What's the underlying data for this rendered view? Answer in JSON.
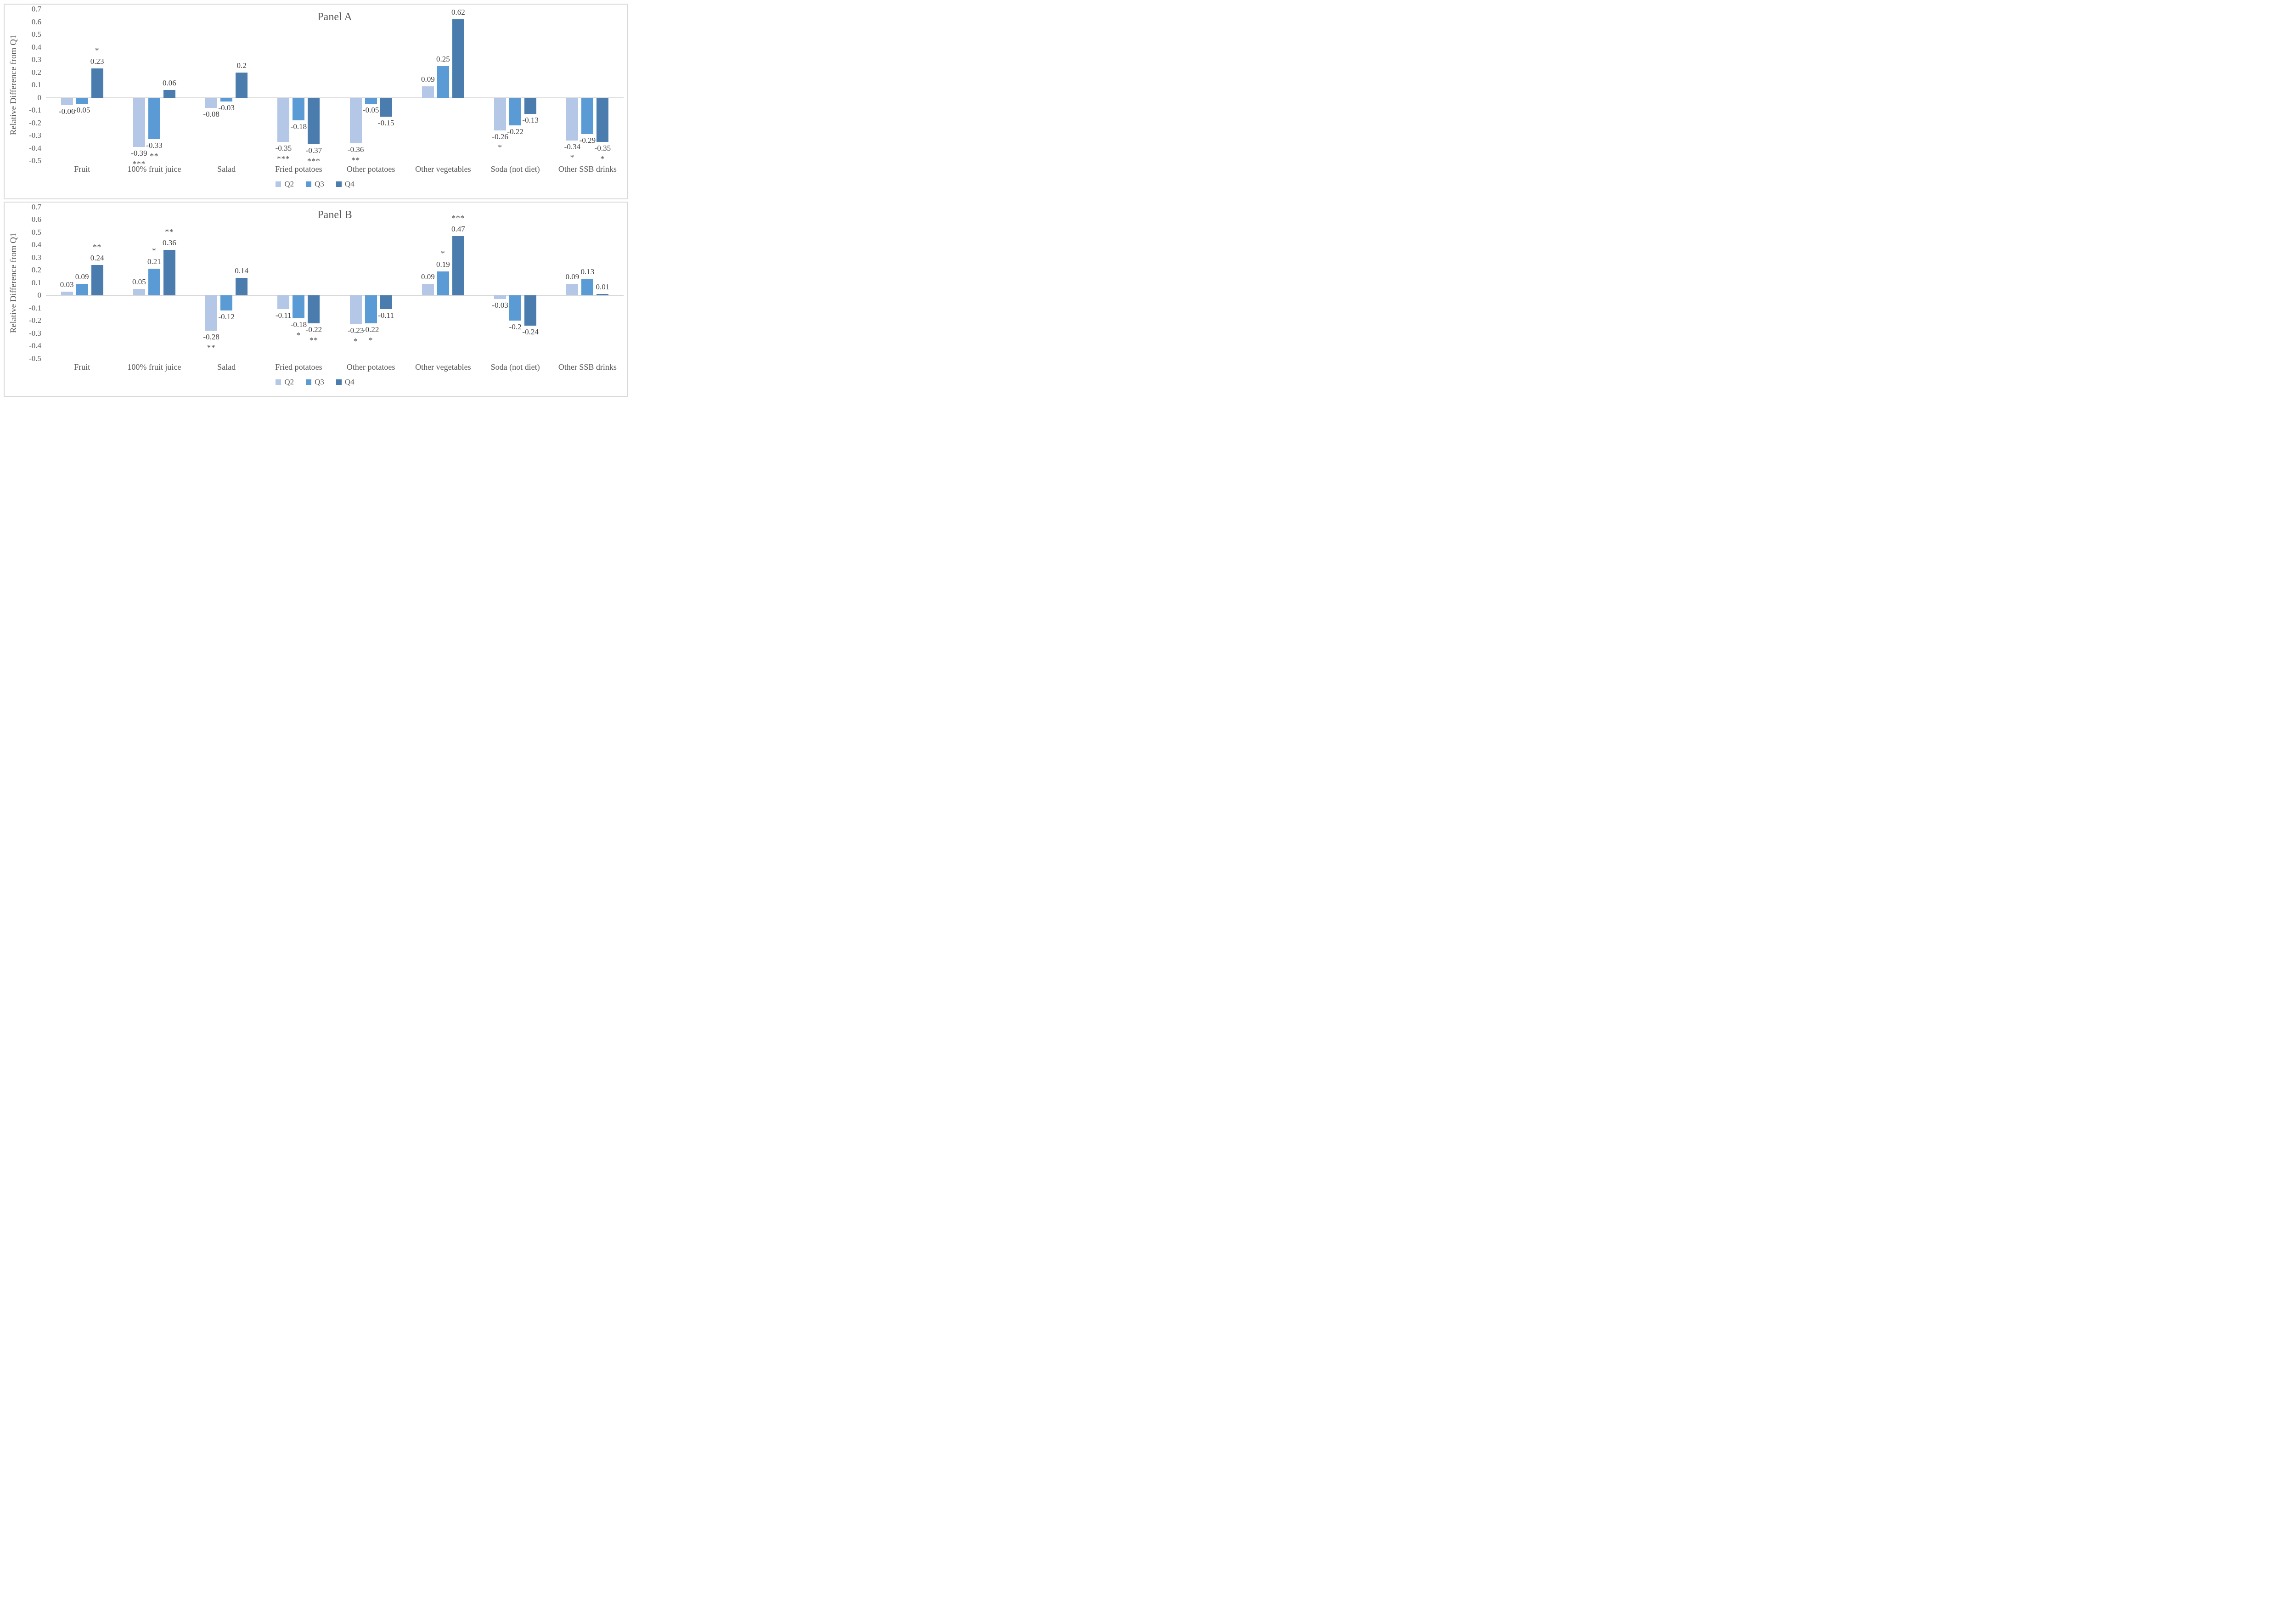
{
  "colors": {
    "q2": "#b4c7e7",
    "q3": "#5b9bd5",
    "q4": "#4a7cae",
    "axis_line": "#d9d9d9",
    "panel_border": "#d9d9d9",
    "muted_text": "#595959",
    "label_text": "#404040"
  },
  "chart_data": [
    {
      "type": "bar",
      "title": "Panel A",
      "ylabel": "Relative Difference from Q1",
      "ylim": [
        -0.5,
        0.7
      ],
      "grid": false,
      "legend_position": "bottom",
      "yticks": [
        "0.7",
        "0.6",
        "0.5",
        "0.4",
        "0.3",
        "0.2",
        "0.1",
        "0",
        "-0.1",
        "-0.2",
        "-0.3",
        "-0.4",
        "-0.5"
      ],
      "categories": [
        "Fruit",
        "100% fruit juice",
        "Salad",
        "Fried potatoes",
        "Other potatoes",
        "Other vegetables",
        "Soda (not diet)",
        "Other SSB drinks"
      ],
      "series": [
        {
          "name": "Q2",
          "color": "#b4c7e7",
          "values": [
            -0.06,
            -0.39,
            -0.08,
            -0.35,
            -0.36,
            0.09,
            -0.26,
            -0.34
          ],
          "sig": [
            "",
            "***",
            "",
            "***",
            "**",
            "",
            "*",
            "*"
          ]
        },
        {
          "name": "Q3",
          "color": "#5b9bd5",
          "values": [
            -0.05,
            -0.33,
            -0.03,
            -0.18,
            -0.05,
            0.25,
            -0.22,
            -0.29
          ],
          "sig": [
            "",
            "**",
            "",
            "",
            "",
            "",
            "",
            ""
          ]
        },
        {
          "name": "Q4",
          "color": "#4a7cae",
          "values": [
            0.23,
            0.06,
            0.2,
            -0.37,
            -0.15,
            0.62,
            -0.13,
            -0.35
          ],
          "sig": [
            "*",
            "",
            "",
            "***",
            "",
            "***",
            "",
            "*"
          ]
        }
      ]
    },
    {
      "type": "bar",
      "title": "Panel B",
      "ylabel": "Relative Difference from Q1",
      "ylim": [
        -0.5,
        0.7
      ],
      "grid": false,
      "legend_position": "bottom",
      "yticks": [
        "0.7",
        "0.6",
        "0.5",
        "0.4",
        "0.3",
        "0.2",
        "0.1",
        "0",
        "-0.1",
        "-0.2",
        "-0.3",
        "-0.4",
        "-0.5"
      ],
      "categories": [
        "Fruit",
        "100% fruit juice",
        "Salad",
        "Fried potatoes",
        "Other potatoes",
        "Other vegetables",
        "Soda (not diet)",
        "Other SSB drinks"
      ],
      "series": [
        {
          "name": "Q2",
          "color": "#b4c7e7",
          "values": [
            0.03,
            0.05,
            -0.28,
            -0.11,
            -0.23,
            0.09,
            -0.03,
            0.09
          ],
          "sig": [
            "",
            "",
            "**",
            "",
            "*",
            "",
            "",
            ""
          ]
        },
        {
          "name": "Q3",
          "color": "#5b9bd5",
          "values": [
            0.09,
            0.21,
            -0.12,
            -0.18,
            -0.22,
            0.19,
            -0.2,
            0.13
          ],
          "sig": [
            "",
            "*",
            "",
            "*",
            "*",
            "*",
            "",
            ""
          ]
        },
        {
          "name": "Q4",
          "color": "#4a7cae",
          "values": [
            0.24,
            0.36,
            0.14,
            -0.22,
            -0.11,
            0.47,
            -0.24,
            0.01
          ],
          "sig": [
            "**",
            "**",
            "",
            "**",
            "",
            "***",
            "",
            ""
          ]
        }
      ]
    }
  ]
}
